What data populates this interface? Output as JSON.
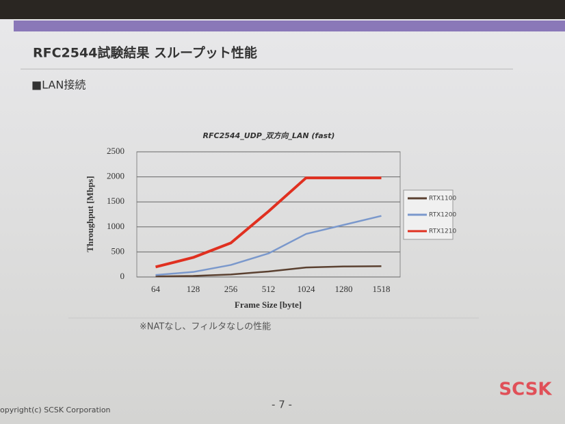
{
  "slide": {
    "title": "RFC2544試験結果 スループット性能",
    "section": "■LAN接続",
    "note": "※NATなし、フィルタなしの性能",
    "page": "- 7 -",
    "copyright": "opyright(c) SCSK Corporation",
    "logo": "SCSK"
  },
  "chart_data": {
    "type": "line",
    "title": "RFC2544_UDP_双方向_LAN (fast)",
    "x_label": "Frame Size [byte]",
    "y_label": "Throughput [Mbps]",
    "categories": [
      "64",
      "128",
      "256",
      "512",
      "1024",
      "1280",
      "1518"
    ],
    "series": [
      {
        "name": "RTX1100",
        "color": "#5a4030",
        "values": [
          10,
          20,
          50,
          110,
          190,
          210,
          215
        ]
      },
      {
        "name": "RTX1200",
        "color": "#7a98cc",
        "values": [
          40,
          100,
          240,
          470,
          860,
          1040,
          1220
        ]
      },
      {
        "name": "RTX1210",
        "color": "#e03020",
        "values": [
          200,
          390,
          680,
          1310,
          1980,
          1980,
          1980
        ]
      }
    ],
    "ylim": [
      0,
      2500
    ],
    "yticks": [
      0,
      500,
      1000,
      1500,
      2000,
      2500
    ],
    "grid": true,
    "legend": "right"
  }
}
